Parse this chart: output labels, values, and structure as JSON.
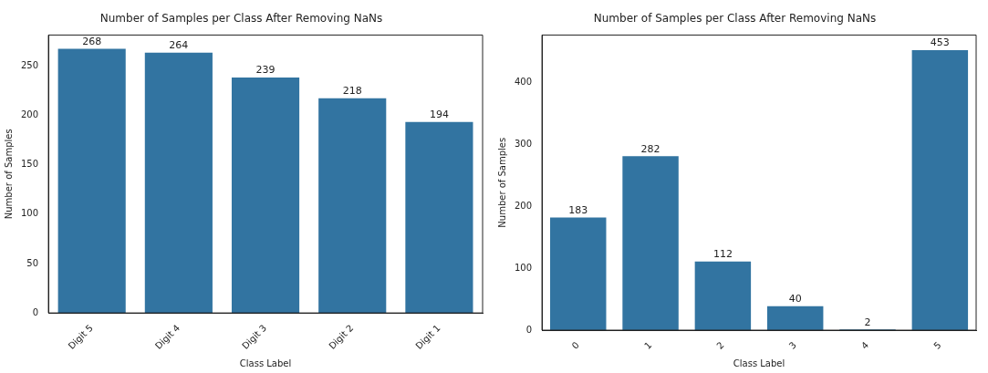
{
  "chart_data": [
    {
      "type": "bar",
      "title": "Number of Samples per Class After Removing NaNs",
      "xlabel": "Class Label",
      "ylabel": "Number of Samples",
      "categories": [
        "Digit 5",
        "Digit 4",
        "Digit 3",
        "Digit 2",
        "Digit 1"
      ],
      "values": [
        268,
        264,
        239,
        218,
        194
      ],
      "color": "#3274a1",
      "ylim": [
        0,
        281
      ],
      "yticks": [
        0,
        50,
        100,
        150,
        200,
        250
      ],
      "data_labels": true
    },
    {
      "type": "bar",
      "title": "Number of Samples per Class After Removing NaNs",
      "xlabel": "Class Label",
      "ylabel": "Number of Samples",
      "categories": [
        "0",
        "1",
        "2",
        "3",
        "4",
        "5"
      ],
      "values": [
        183,
        282,
        112,
        40,
        2,
        453
      ],
      "color": "#3274a1",
      "ylim": [
        0,
        476
      ],
      "yticks": [
        0,
        100,
        200,
        300,
        400
      ],
      "data_labels": true
    }
  ]
}
